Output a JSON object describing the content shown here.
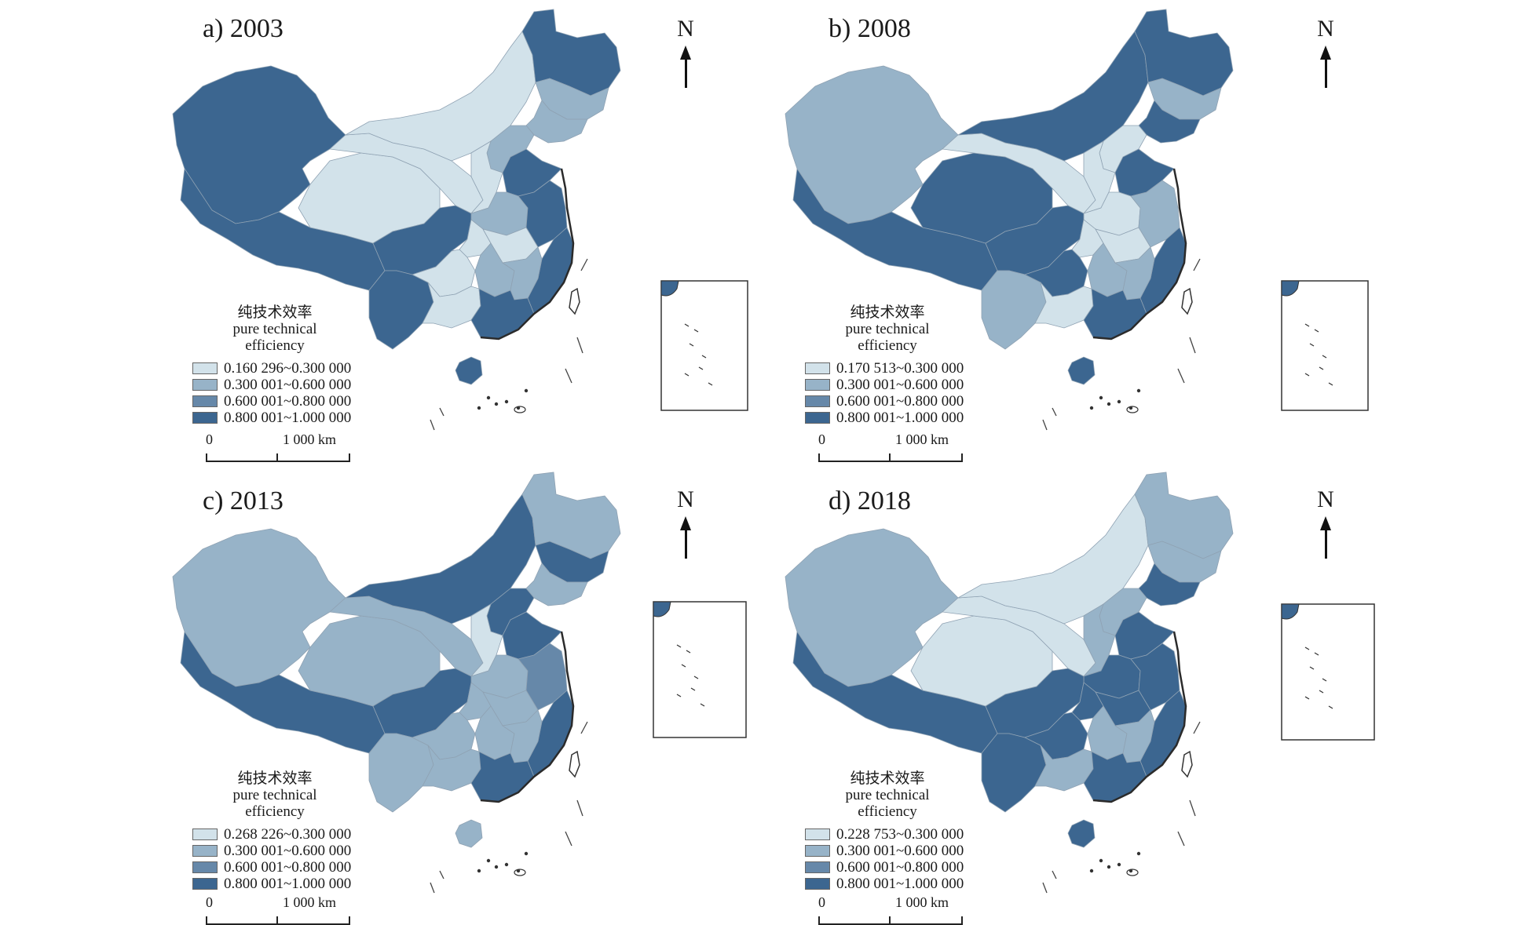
{
  "legend": {
    "title_cn": "纯技术效率",
    "title_en_1": "pure technical",
    "title_en_2": "efficiency"
  },
  "scale": {
    "zero": "0",
    "distance": "1 000 km"
  },
  "north": "N",
  "colors": {
    "c1": "#d2e2ea",
    "c2": "#97b3c8",
    "c3": "#6688a9",
    "c4": "#3c6690"
  },
  "panels": [
    {
      "id": "a",
      "title": "a) 2003",
      "classes": [
        "0.160 296~0.300 000",
        "0.300 001~0.600 000",
        "0.600 001~0.800 000",
        "0.800 001~1.000 000"
      ],
      "regions": {
        "xinjiang": 4,
        "tibet": 4,
        "qinghai": 1,
        "gansu": 1,
        "inner_mongolia": 1,
        "heilongjiang": 4,
        "jilin": 2,
        "liaoning": 2,
        "north_china": 2,
        "shanxi": 1,
        "shandong": 4,
        "henan": 2,
        "jiangsu_anhui": 4,
        "east_coast": 4,
        "sichuan": 4,
        "chongqing": 1,
        "hubei": 1,
        "hunan": 2,
        "jiangxi": 2,
        "yunnan": 4,
        "guizhou": 1,
        "guangxi": 1,
        "guangdong": 4,
        "hainan": 4
      }
    },
    {
      "id": "b",
      "title": "b) 2008",
      "classes": [
        "0.170 513~0.300 000",
        "0.300 001~0.600 000",
        "0.600 001~0.800 000",
        "0.800 001~1.000 000"
      ],
      "regions": {
        "xinjiang": 2,
        "tibet": 4,
        "qinghai": 4,
        "gansu": 1,
        "inner_mongolia": 4,
        "heilongjiang": 4,
        "jilin": 2,
        "liaoning": 4,
        "north_china": 1,
        "shanxi": 1,
        "shandong": 4,
        "henan": 1,
        "jiangsu_anhui": 2,
        "east_coast": 4,
        "sichuan": 4,
        "chongqing": 1,
        "hubei": 1,
        "hunan": 2,
        "jiangxi": 2,
        "yunnan": 2,
        "guizhou": 4,
        "guangxi": 1,
        "guangdong": 4,
        "hainan": 4
      }
    },
    {
      "id": "c",
      "title": "c) 2013",
      "classes": [
        "0.268 226~0.300 000",
        "0.300 001~0.600 000",
        "0.600 001~0.800 000",
        "0.800 001~1.000 000"
      ],
      "regions": {
        "xinjiang": 2,
        "tibet": 4,
        "qinghai": 2,
        "gansu": 2,
        "inner_mongolia": 4,
        "heilongjiang": 2,
        "jilin": 4,
        "liaoning": 2,
        "north_china": 4,
        "shanxi": 1,
        "shandong": 4,
        "henan": 2,
        "jiangsu_anhui": 3,
        "east_coast": 4,
        "sichuan": 4,
        "chongqing": 2,
        "hubei": 2,
        "hunan": 2,
        "jiangxi": 2,
        "yunnan": 2,
        "guizhou": 2,
        "guangxi": 2,
        "guangdong": 4,
        "hainan": 2
      }
    },
    {
      "id": "d",
      "title": "d) 2018",
      "classes": [
        "0.228 753~0.300 000",
        "0.300 001~0.600 000",
        "0.600 001~0.800 000",
        "0.800 001~1.000 000"
      ],
      "regions": {
        "xinjiang": 2,
        "tibet": 4,
        "qinghai": 1,
        "gansu": 1,
        "inner_mongolia": 1,
        "heilongjiang": 2,
        "jilin": 2,
        "liaoning": 4,
        "north_china": 2,
        "shanxi": 2,
        "shandong": 4,
        "henan": 4,
        "jiangsu_anhui": 4,
        "east_coast": 4,
        "sichuan": 4,
        "chongqing": 4,
        "hubei": 4,
        "hunan": 2,
        "jiangxi": 2,
        "yunnan": 4,
        "guizhou": 4,
        "guangxi": 2,
        "guangdong": 4,
        "hainan": 4
      }
    }
  ]
}
